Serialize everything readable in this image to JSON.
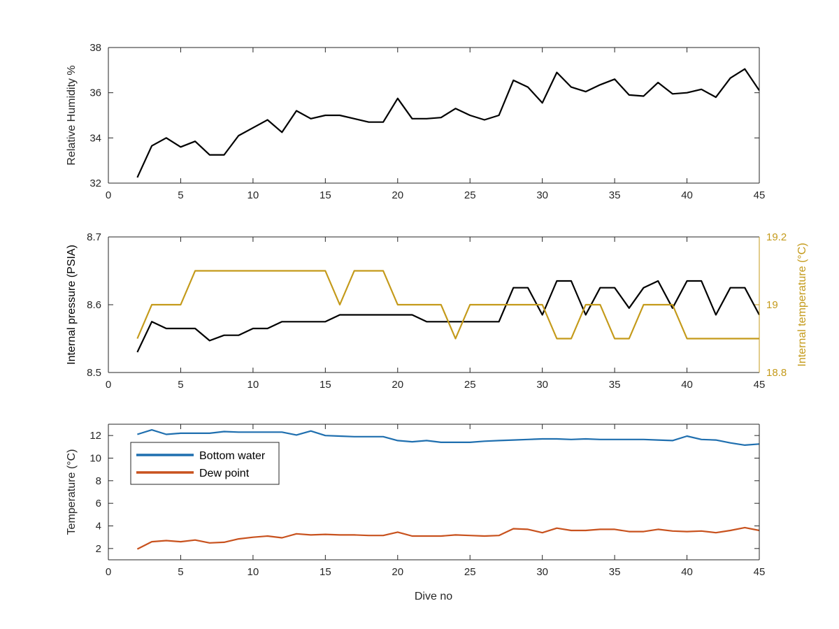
{
  "figure": {
    "xlabel": "Dive no"
  },
  "chart_data": [
    {
      "type": "line",
      "xlim": [
        0,
        45
      ],
      "ylim": [
        32,
        38
      ],
      "xticks": [
        0,
        5,
        10,
        15,
        20,
        25,
        30,
        35,
        40,
        45
      ],
      "yticks": [
        32,
        34,
        36,
        38
      ],
      "xlabel": "",
      "ylabel": "Relative Humidity %",
      "grid": false,
      "x": [
        2,
        3,
        4,
        5,
        6,
        7,
        8,
        9,
        10,
        11,
        12,
        13,
        14,
        15,
        16,
        17,
        18,
        19,
        20,
        21,
        22,
        23,
        24,
        25,
        26,
        27,
        28,
        29,
        30,
        31,
        32,
        33,
        34,
        35,
        36,
        37,
        38,
        39,
        40,
        41,
        42,
        43,
        44,
        45
      ],
      "series": [
        {
          "color": "#000000",
          "values": [
            32.25,
            33.65,
            34.0,
            33.6,
            33.85,
            33.25,
            33.25,
            34.1,
            34.45,
            34.8,
            34.25,
            35.2,
            34.85,
            35.0,
            35.0,
            34.85,
            34.7,
            34.7,
            35.75,
            34.85,
            34.85,
            34.9,
            35.3,
            35.0,
            34.8,
            35.0,
            36.55,
            36.25,
            35.55,
            36.9,
            36.25,
            36.05,
            36.35,
            36.6,
            35.9,
            35.85,
            36.45,
            35.95,
            36.0,
            36.15,
            35.8,
            36.65,
            37.05,
            36.1
          ]
        }
      ]
    },
    {
      "type": "line",
      "xlim": [
        0,
        45
      ],
      "ylim": [
        8.5,
        8.7
      ],
      "y2lim": [
        18.8,
        19.2
      ],
      "xticks": [
        0,
        5,
        10,
        15,
        20,
        25,
        30,
        35,
        40,
        45
      ],
      "yticks": [
        "8.5",
        "8.6",
        "8.7"
      ],
      "y2ticks": [
        "18.8",
        "19",
        "19.2"
      ],
      "xlabel": "",
      "ylabel": "Internal pressure (PSIA)",
      "y2label": "Internal temperature (°C)",
      "grid": false,
      "x": [
        2,
        3,
        4,
        5,
        6,
        7,
        8,
        9,
        10,
        11,
        12,
        13,
        14,
        15,
        16,
        17,
        18,
        19,
        20,
        21,
        22,
        23,
        24,
        25,
        26,
        27,
        28,
        29,
        30,
        31,
        32,
        33,
        34,
        35,
        36,
        37,
        38,
        39,
        40,
        41,
        42,
        43,
        44,
        45
      ],
      "series": [
        {
          "axis": "left",
          "color": "#000000",
          "values": [
            8.53,
            8.575,
            8.565,
            8.565,
            8.565,
            8.547,
            8.555,
            8.555,
            8.565,
            8.565,
            8.575,
            8.575,
            8.575,
            8.575,
            8.585,
            8.585,
            8.585,
            8.585,
            8.585,
            8.585,
            8.575,
            8.575,
            8.575,
            8.575,
            8.575,
            8.575,
            8.625,
            8.625,
            8.585,
            8.635,
            8.635,
            8.585,
            8.625,
            8.625,
            8.595,
            8.625,
            8.635,
            8.595,
            8.635,
            8.635,
            8.585,
            8.625,
            8.625,
            8.585
          ]
        },
        {
          "axis": "right",
          "color": "#C49A1A",
          "values": [
            18.9,
            19.0,
            19.0,
            19.0,
            19.1,
            19.1,
            19.1,
            19.1,
            19.1,
            19.1,
            19.1,
            19.1,
            19.1,
            19.1,
            19.0,
            19.1,
            19.1,
            19.1,
            19.0,
            19.0,
            19.0,
            19.0,
            18.9,
            19.0,
            19.0,
            19.0,
            19.0,
            19.0,
            19.0,
            18.9,
            18.9,
            19.0,
            19.0,
            18.9,
            18.9,
            19.0,
            19.0,
            19.0,
            18.9,
            18.9,
            18.9,
            18.9,
            18.9,
            18.9
          ]
        }
      ]
    },
    {
      "type": "line",
      "xlim": [
        0,
        45
      ],
      "ylim": [
        1,
        13
      ],
      "xticks": [
        0,
        5,
        10,
        15,
        20,
        25,
        30,
        35,
        40,
        45
      ],
      "yticks": [
        2,
        4,
        6,
        8,
        10,
        12
      ],
      "xlabel": "Dive no",
      "ylabel": "Temperature (°C)",
      "grid": false,
      "legend_position": "top-left",
      "x": [
        2,
        3,
        4,
        5,
        6,
        7,
        8,
        9,
        10,
        11,
        12,
        13,
        14,
        15,
        16,
        17,
        18,
        19,
        20,
        21,
        22,
        23,
        24,
        25,
        26,
        27,
        28,
        29,
        30,
        31,
        32,
        33,
        34,
        35,
        36,
        37,
        38,
        39,
        40,
        41,
        42,
        43,
        44,
        45
      ],
      "series": [
        {
          "name": "Bottom water",
          "color": "#1F6FAF",
          "values": [
            12.1,
            12.5,
            12.1,
            12.2,
            12.2,
            12.2,
            12.35,
            12.3,
            12.3,
            12.3,
            12.3,
            12.05,
            12.4,
            12.0,
            11.95,
            11.9,
            11.9,
            11.9,
            11.55,
            11.45,
            11.55,
            11.4,
            11.4,
            11.4,
            11.5,
            11.55,
            11.6,
            11.65,
            11.7,
            11.7,
            11.65,
            11.7,
            11.65,
            11.65,
            11.65,
            11.65,
            11.6,
            11.55,
            11.95,
            11.65,
            11.6,
            11.35,
            11.15,
            11.25
          ]
        },
        {
          "name": "Dew point",
          "color": "#C8521E",
          "values": [
            1.95,
            2.6,
            2.7,
            2.6,
            2.75,
            2.5,
            2.55,
            2.85,
            3.0,
            3.1,
            2.95,
            3.3,
            3.2,
            3.25,
            3.2,
            3.2,
            3.15,
            3.15,
            3.45,
            3.1,
            3.1,
            3.1,
            3.2,
            3.15,
            3.1,
            3.15,
            3.75,
            3.7,
            3.4,
            3.8,
            3.6,
            3.6,
            3.7,
            3.7,
            3.5,
            3.5,
            3.7,
            3.55,
            3.5,
            3.55,
            3.4,
            3.6,
            3.85,
            3.6
          ]
        }
      ]
    }
  ]
}
